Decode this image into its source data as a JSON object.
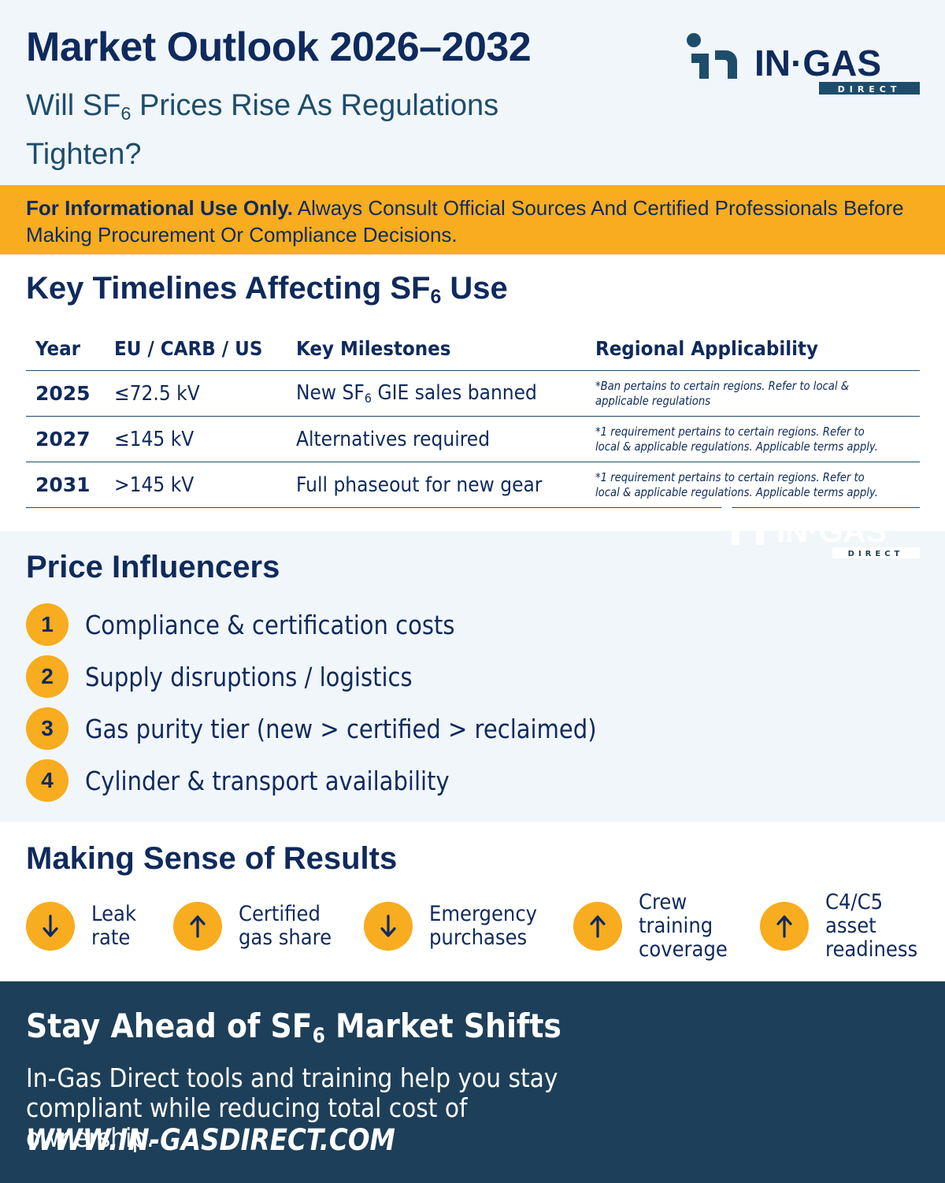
{
  "header": {
    "title": "Market Outlook 2026–2032",
    "subtitle_pre": "Will SF",
    "subtitle_sub": "6",
    "subtitle_post": " Prices Rise As Regulations Tighten?"
  },
  "brand": {
    "logo_main": "IN·GAS",
    "logo_sub": "DIRECT",
    "colors": {
      "navy": "#0f2a5c",
      "teal": "#1e4d6b",
      "orange": "#f8ac1f",
      "cta_bg": "#1d3f59"
    }
  },
  "disclaimer": {
    "bold": "For Informational Use Only.",
    "text": " Always Consult Official Sources And Certified Professionals Before Making Procurement Or Compliance Decisions."
  },
  "timelines": {
    "title_pre": "Key Timelines Affecting SF",
    "title_sub": "6",
    "title_post": " Use",
    "headers": [
      "Year",
      "EU / CARB / US",
      "Key Milestones",
      "Regional Applicability"
    ],
    "rows": [
      {
        "year": "2025",
        "voltage": "≤72.5 kV",
        "milestone_pre": "New SF",
        "milestone_sub": "6",
        "milestone_post": " GIE sales banned",
        "note": "*Ban pertains to certain regions. Refer to local & applicable regulations"
      },
      {
        "year": "2027",
        "voltage": "≤145 kV",
        "milestone_pre": "Alternatives required",
        "milestone_sub": "",
        "milestone_post": "",
        "note": "*1 requirement pertains to certain regions. Refer to local & applicable regulations. Applicable terms apply."
      },
      {
        "year": "2031",
        "voltage": ">145 kV",
        "milestone_pre": "Full phaseout for new gear",
        "milestone_sub": "",
        "milestone_post": "",
        "note": "*1 requirement pertains to certain regions. Refer to local & applicable regulations. Applicable terms apply."
      }
    ]
  },
  "influencers": {
    "title": "Price Influencers",
    "items": [
      {
        "num": "1",
        "text": "Compliance & certification costs"
      },
      {
        "num": "2",
        "text": "Supply disruptions / logistics"
      },
      {
        "num": "3",
        "text": "Gas purity tier (new > certified > reclaimed)"
      },
      {
        "num": "4",
        "text": "Cylinder & transport availability"
      }
    ]
  },
  "results": {
    "title": "Making Sense of Results",
    "metrics": [
      {
        "direction": "down",
        "icon": "arrow-down-icon",
        "label": "Leak\nrate"
      },
      {
        "direction": "up",
        "icon": "arrow-up-icon",
        "label": "Certified\ngas share"
      },
      {
        "direction": "down",
        "icon": "arrow-down-icon",
        "label": "Emergency\npurchases"
      },
      {
        "direction": "up",
        "icon": "arrow-up-icon",
        "label": "Crew\ntraining\ncoverage"
      },
      {
        "direction": "up",
        "icon": "arrow-up-icon",
        "label": "C4/C5\nasset\nreadiness"
      }
    ]
  },
  "cta": {
    "title_pre": "Stay Ahead of SF",
    "title_sub": "6",
    "title_post": " Market Shifts",
    "body": "In-Gas Direct tools and training help you stay compliant while reducing total cost of ownership.",
    "url": "WWW.IN-GASDIRECT.COM"
  }
}
